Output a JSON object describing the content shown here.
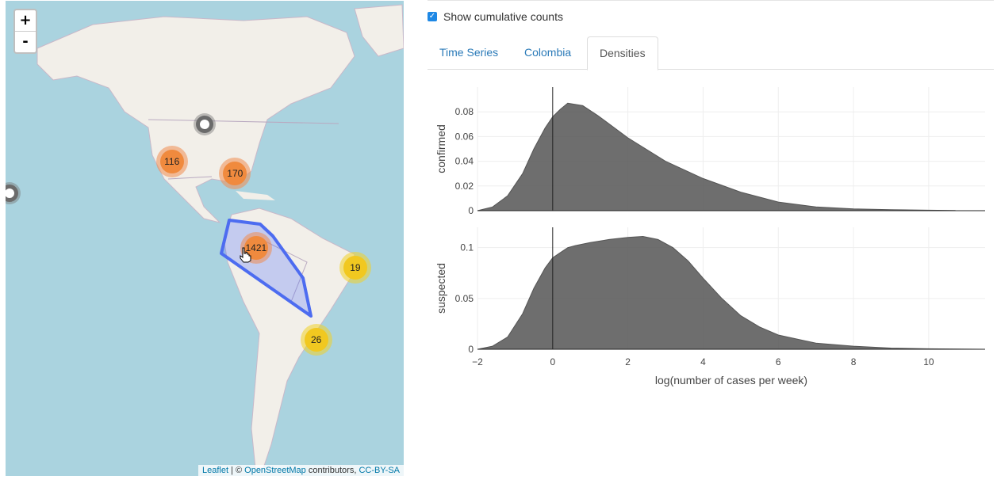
{
  "map": {
    "zoom_in": "+",
    "zoom_out": "-",
    "clusters": [
      {
        "label": "",
        "kind": "gray",
        "lon": -92,
        "lat": 44
      },
      {
        "label": "",
        "kind": "gray",
        "lon": -157,
        "lat": 20
      },
      {
        "label": "116",
        "kind": "orange",
        "lon": -103,
        "lat": 31
      },
      {
        "label": "170",
        "kind": "orange",
        "lon": -82,
        "lat": 27
      },
      {
        "label": "1421",
        "kind": "orange",
        "lon": -75,
        "lat": 1
      },
      {
        "label": "19",
        "kind": "yellow",
        "lon": -42,
        "lat": -6
      },
      {
        "label": "26",
        "kind": "yellow",
        "lon": -55,
        "lat": -31
      }
    ],
    "attribution": {
      "leaflet": "Leaflet",
      "sep": " | © ",
      "osm": "OpenStreetMap",
      "contrib": " contributors, ",
      "license": "CC-BY-SA"
    }
  },
  "controls": {
    "show_cumulative_label": "Show cumulative counts",
    "show_cumulative_checked": true
  },
  "tabs": [
    {
      "label": "Time Series",
      "active": false
    },
    {
      "label": "Colombia",
      "active": false
    },
    {
      "label": "Densities",
      "active": true
    }
  ],
  "chart_data": {
    "type": "area",
    "xlabel": "log(number of cases per week)",
    "xlim": [
      -2,
      11.5
    ],
    "xticks": [
      -2,
      0,
      2,
      4,
      6,
      8,
      10
    ],
    "xtick_labels": [
      "−2",
      "0",
      "2",
      "4",
      "6",
      "8",
      "10"
    ],
    "panels": [
      {
        "ylabel": "confirmed",
        "ylim": [
          0,
          0.1
        ],
        "yticks": [
          0,
          0.02,
          0.04,
          0.06,
          0.08
        ],
        "ytick_labels": [
          "0",
          "0.02",
          "0.04",
          "0.06",
          "0.08"
        ],
        "x": [
          -2,
          -1.6,
          -1.2,
          -0.8,
          -0.5,
          -0.2,
          0,
          0.2,
          0.4,
          0.8,
          1.2,
          2,
          3,
          4,
          5,
          6,
          7,
          8,
          9,
          10,
          10.7
        ],
        "y": [
          0,
          0.003,
          0.012,
          0.03,
          0.05,
          0.067,
          0.076,
          0.082,
          0.087,
          0.085,
          0.077,
          0.059,
          0.04,
          0.026,
          0.015,
          0.007,
          0.003,
          0.0015,
          0.0008,
          0.0004,
          0.0002
        ]
      },
      {
        "ylabel": "suspected",
        "ylim": [
          0,
          0.12
        ],
        "yticks": [
          0,
          0.05,
          0.1
        ],
        "ytick_labels": [
          "0",
          "0.05",
          "0.1"
        ],
        "x": [
          -2,
          -1.6,
          -1.2,
          -0.8,
          -0.5,
          -0.2,
          0,
          0.2,
          0.4,
          0.6,
          1,
          1.5,
          2,
          2.4,
          2.8,
          3.2,
          3.6,
          4,
          4.5,
          5,
          5.5,
          6,
          7,
          8,
          9,
          10,
          11.5
        ],
        "y": [
          0,
          0.003,
          0.012,
          0.035,
          0.06,
          0.08,
          0.09,
          0.095,
          0.1,
          0.102,
          0.105,
          0.108,
          0.11,
          0.111,
          0.108,
          0.1,
          0.087,
          0.07,
          0.05,
          0.033,
          0.022,
          0.014,
          0.006,
          0.003,
          0.0012,
          0.0005,
          0
        ]
      }
    ]
  }
}
